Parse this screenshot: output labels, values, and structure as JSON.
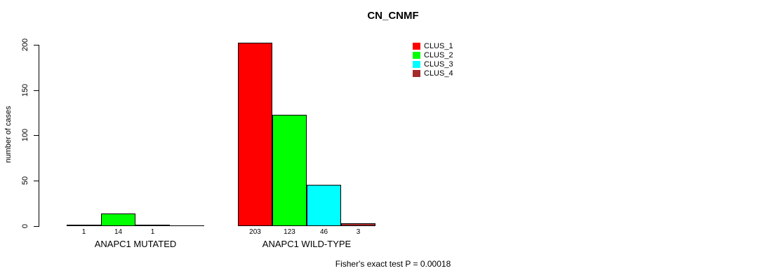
{
  "title": "CN_CNMF",
  "y_axis_label": "number of cases",
  "footer_annotation": "Fisher's exact test P = 0.00018",
  "legend": [
    {
      "label": "CLUS_1",
      "color": "#FF0000"
    },
    {
      "label": "CLUS_2",
      "color": "#00FF00"
    },
    {
      "label": "CLUS_3",
      "color": "#00FFFF"
    },
    {
      "label": "CLUS_4",
      "color": "#A52A2A"
    }
  ],
  "chart_data": {
    "type": "bar",
    "title": "CN_CNMF",
    "xlabel": "",
    "ylabel": "number of cases",
    "ylim": [
      0,
      200
    ],
    "yticks": [
      0,
      50,
      100,
      150,
      200
    ],
    "grid": false,
    "legend_position": "top-right",
    "categories": [
      "ANAPC1 MUTATED",
      "ANAPC1 WILD-TYPE"
    ],
    "series": [
      {
        "name": "CLUS_1",
        "color": "#FF0000",
        "values": [
          1,
          203
        ]
      },
      {
        "name": "CLUS_2",
        "color": "#00FF00",
        "values": [
          14,
          123
        ]
      },
      {
        "name": "CLUS_3",
        "color": "#00FFFF",
        "values": [
          1,
          46
        ]
      },
      {
        "name": "CLUS_4",
        "color": "#A52A2A",
        "values": [
          0,
          3
        ]
      }
    ],
    "bar_value_labels": [
      [
        "1",
        "14",
        "1",
        ""
      ],
      [
        "203",
        "123",
        "46",
        "3"
      ]
    ],
    "annotation": "Fisher's exact test P = 0.00018"
  }
}
